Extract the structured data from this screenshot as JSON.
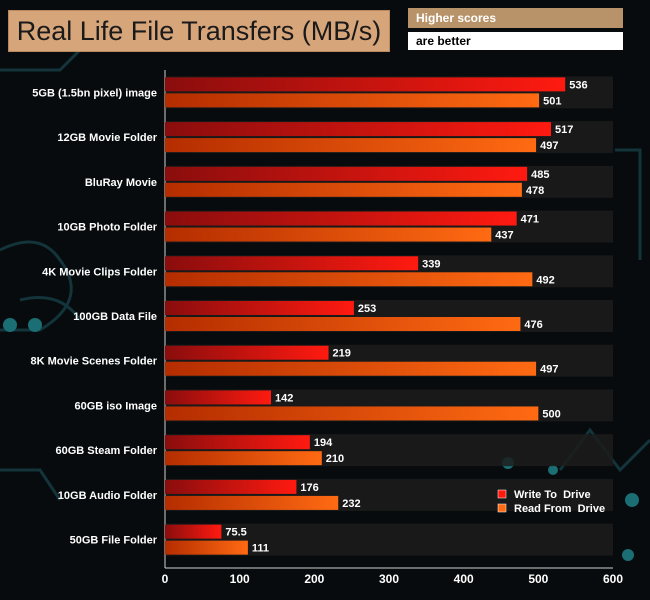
{
  "header": {
    "hint_line1": "Higher scores",
    "hint_line2": "are better"
  },
  "colors": {
    "write_start": "#8a0d0d",
    "write_end": "#ff1a10",
    "read_start": "#b52d00",
    "read_end": "#ff6a12",
    "band": "#1c1c1c",
    "title_bg": "#d7a57a"
  },
  "chart_data": {
    "type": "bar",
    "orientation": "horizontal",
    "title": "Real Life File Transfers (MB/s)",
    "categories": [
      "5GB (1.5bn pixel) image",
      "12GB Movie Folder",
      "BluRay Movie",
      "10GB Photo Folder",
      "4K Movie Clips Folder",
      "100GB Data File",
      "8K Movie Scenes Folder",
      "60GB iso Image",
      "60GB Steam Folder",
      "10GB Audio Folder",
      "50GB File Folder"
    ],
    "series": [
      {
        "name": "Write To  Drive",
        "values": [
          536,
          517,
          485,
          471,
          339,
          253,
          219,
          142,
          194,
          176,
          75.5
        ]
      },
      {
        "name": "Read From  Drive",
        "values": [
          501,
          497,
          478,
          437,
          492,
          476,
          497,
          500,
          210,
          232,
          111
        ]
      }
    ],
    "xlim": [
      0,
      600
    ],
    "xticks": [
      0,
      100,
      200,
      300,
      400,
      500,
      600
    ],
    "legend_position": "bottom-right"
  }
}
